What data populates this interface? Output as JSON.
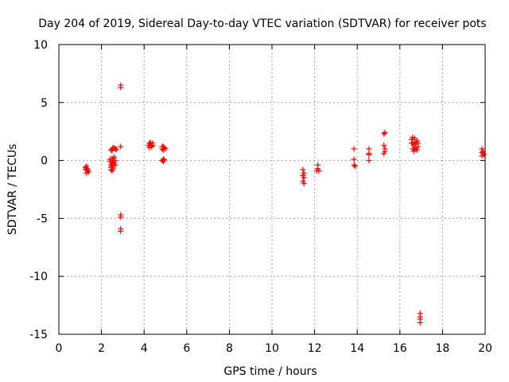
{
  "chart_data": {
    "type": "scatter",
    "title": "Day 204 of 2019, Sidereal Day-to-day VTEC variation (SDTVAR) for receiver pots",
    "xlabel": "GPS time / hours",
    "ylabel": "SDTVAR / TECUs",
    "xlim": [
      0,
      20
    ],
    "ylim": [
      -15,
      10
    ],
    "xticks": [
      "0",
      "2",
      "4",
      "6",
      "8",
      "10",
      "12",
      "14",
      "16",
      "18",
      "20"
    ],
    "yticks": [
      "10",
      "5",
      "0",
      "-5",
      "-10",
      "-15"
    ],
    "grid": true,
    "marker": "+",
    "color": "#ff0000",
    "series": [
      {
        "name": "pots",
        "points": [
          [
            1.25,
            -0.6
          ],
          [
            1.3,
            -0.7
          ],
          [
            1.3,
            -1.1
          ],
          [
            1.35,
            -0.9
          ],
          [
            1.25,
            -0.8
          ],
          [
            1.4,
            -1.0
          ],
          [
            1.3,
            -0.5
          ],
          [
            1.35,
            -0.75
          ],
          [
            2.4,
            -0.1
          ],
          [
            2.4,
            0.1
          ],
          [
            2.45,
            -0.4
          ],
          [
            2.45,
            -0.6
          ],
          [
            2.45,
            -0.8
          ],
          [
            2.5,
            0.2
          ],
          [
            2.5,
            -0.2
          ],
          [
            2.5,
            -0.5
          ],
          [
            2.55,
            0.0
          ],
          [
            2.55,
            -0.3
          ],
          [
            2.6,
            0.3
          ],
          [
            2.6,
            -0.2
          ],
          [
            2.65,
            0.0
          ],
          [
            2.65,
            -0.4
          ],
          [
            2.5,
            -0.9
          ],
          [
            2.55,
            -0.7
          ],
          [
            2.45,
            0.9
          ],
          [
            2.5,
            1.0
          ],
          [
            2.55,
            1.1
          ],
          [
            2.6,
            1.05
          ],
          [
            2.65,
            1.0
          ],
          [
            2.7,
            0.95
          ],
          [
            2.5,
            0.85
          ],
          [
            2.9,
            6.5
          ],
          [
            2.9,
            6.3
          ],
          [
            2.9,
            1.2
          ],
          [
            2.9,
            -4.7
          ],
          [
            2.9,
            -4.9
          ],
          [
            2.9,
            -5.9
          ],
          [
            2.9,
            -6.1
          ],
          [
            4.2,
            1.3
          ],
          [
            4.25,
            1.5
          ],
          [
            4.3,
            1.4
          ],
          [
            4.35,
            1.2
          ],
          [
            4.4,
            1.3
          ],
          [
            4.25,
            1.1
          ],
          [
            4.4,
            1.5
          ],
          [
            4.3,
            1.55
          ],
          [
            4.85,
            1.0
          ],
          [
            4.9,
            1.2
          ],
          [
            4.95,
            1.1
          ],
          [
            5.0,
            1.0
          ],
          [
            4.9,
            0.9
          ],
          [
            4.85,
            1.2
          ],
          [
            4.85,
            0.0
          ],
          [
            4.9,
            -0.1
          ],
          [
            4.95,
            0.05
          ],
          [
            4.9,
            0.1
          ],
          [
            11.45,
            -0.8
          ],
          [
            11.45,
            -1.3
          ],
          [
            11.5,
            -1.5
          ],
          [
            11.45,
            -1.8
          ],
          [
            11.5,
            -2.0
          ],
          [
            11.5,
            -1.1
          ],
          [
            12.1,
            -0.9
          ],
          [
            12.15,
            -0.7
          ],
          [
            12.2,
            -0.9
          ],
          [
            12.15,
            -0.4
          ],
          [
            13.85,
            1.0
          ],
          [
            13.85,
            0.1
          ],
          [
            13.85,
            -0.4
          ],
          [
            13.9,
            -0.5
          ],
          [
            14.55,
            1.0
          ],
          [
            14.55,
            0.6
          ],
          [
            14.55,
            0.5
          ],
          [
            14.55,
            0.0
          ],
          [
            15.25,
            2.3
          ],
          [
            15.3,
            2.4
          ],
          [
            15.25,
            1.3
          ],
          [
            15.3,
            1.0
          ],
          [
            15.3,
            0.8
          ],
          [
            15.25,
            0.6
          ],
          [
            16.55,
            1.8
          ],
          [
            16.6,
            2.0
          ],
          [
            16.6,
            1.5
          ],
          [
            16.65,
            1.3
          ],
          [
            16.6,
            1.0
          ],
          [
            16.65,
            0.8
          ],
          [
            16.7,
            1.9
          ],
          [
            16.7,
            1.6
          ],
          [
            16.75,
            1.4
          ],
          [
            16.75,
            1.1
          ],
          [
            16.8,
            0.9
          ],
          [
            16.8,
            1.7
          ],
          [
            16.85,
            1.5
          ],
          [
            16.85,
            1.2
          ],
          [
            16.7,
            0.95
          ],
          [
            16.55,
            1.5
          ],
          [
            16.95,
            -13.2
          ],
          [
            16.95,
            -13.5
          ],
          [
            16.95,
            -13.7
          ],
          [
            16.95,
            -14.0
          ],
          [
            19.85,
            1.0
          ],
          [
            19.9,
            0.6
          ],
          [
            19.85,
            0.4
          ],
          [
            19.9,
            0.8
          ],
          [
            19.95,
            0.5
          ],
          [
            19.85,
            0.7
          ]
        ]
      }
    ]
  }
}
